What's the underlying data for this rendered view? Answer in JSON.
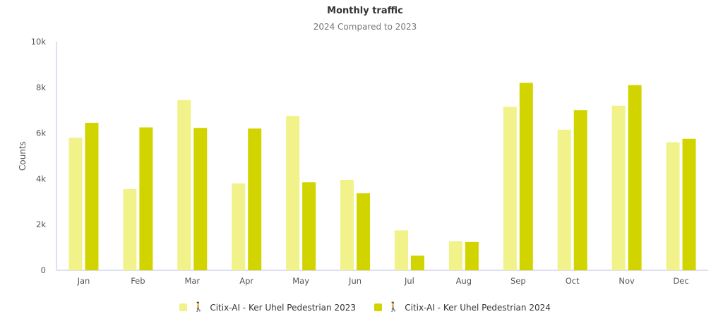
{
  "chart_data": {
    "type": "bar",
    "title": "Monthly traffic",
    "subtitle": "2024 Compared to 2023",
    "ylabel": "Counts",
    "xlabel": "",
    "ylim": [
      0,
      10000
    ],
    "yticks": [
      0,
      2000,
      4000,
      6000,
      8000,
      10000
    ],
    "ytick_labels": [
      "0",
      "2k",
      "4k",
      "6k",
      "8k",
      "10k"
    ],
    "categories": [
      "Jan",
      "Feb",
      "Mar",
      "Apr",
      "May",
      "Jun",
      "Jul",
      "Aug",
      "Sep",
      "Oct",
      "Nov",
      "Dec"
    ],
    "series": [
      {
        "name": "Citix-AI - Ker Uhel Pedestrian 2023",
        "color": "#f2f28a",
        "values": [
          5800,
          3550,
          7450,
          3800,
          6750,
          3950,
          1750,
          1270,
          7150,
          6150,
          7200,
          5600
        ]
      },
      {
        "name": "Citix-AI - Ker Uhel Pedestrian 2024",
        "color": "#d2d400",
        "values": [
          6450,
          6250,
          6230,
          6200,
          3850,
          3370,
          640,
          1240,
          8200,
          7000,
          8100,
          5750
        ]
      }
    ],
    "grid": false,
    "legend_position": "bottom",
    "legend_icon": "pedestrian-icon"
  }
}
